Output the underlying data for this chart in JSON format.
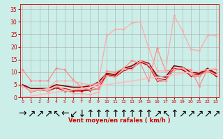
{
  "xlabel": "Vent moyen/en rafales ( km/h )",
  "xlim": [
    -0.3,
    23.3
  ],
  "ylim": [
    0,
    37
  ],
  "yticks": [
    0,
    5,
    10,
    15,
    20,
    25,
    30,
    35
  ],
  "xticks": [
    0,
    1,
    2,
    3,
    4,
    5,
    6,
    7,
    8,
    9,
    10,
    11,
    12,
    13,
    14,
    15,
    16,
    17,
    18,
    19,
    20,
    21,
    22,
    23
  ],
  "bg_color": "#cceee8",
  "grid_color": "#aaaaaa",
  "lines": [
    {
      "x": [
        0,
        1,
        2,
        3,
        4,
        5,
        6,
        7,
        8,
        9,
        10,
        11,
        12,
        13,
        14,
        15,
        16,
        17,
        18,
        19,
        20,
        21,
        22,
        23
      ],
      "y": [
        4.8,
        2.2,
        3.0,
        2.5,
        3.8,
        2.5,
        2.5,
        2.5,
        2.8,
        3.5,
        9.0,
        8.5,
        11.5,
        11.5,
        14.0,
        12.5,
        6.5,
        6.5,
        11.0,
        11.0,
        8.5,
        8.5,
        10.5,
        8.5
      ],
      "color": "#cc0000",
      "lw": 0.9,
      "marker": "D",
      "ms": 1.8
    },
    {
      "x": [
        0,
        1,
        2,
        3,
        4,
        5,
        6,
        7,
        8,
        9,
        10,
        11,
        12,
        13,
        14,
        15,
        16,
        17,
        18,
        19,
        20,
        21,
        22,
        23
      ],
      "y": [
        4.8,
        2.2,
        3.0,
        2.5,
        3.8,
        3.5,
        2.8,
        2.8,
        3.2,
        5.0,
        8.5,
        8.0,
        10.5,
        11.5,
        14.0,
        13.0,
        7.5,
        7.0,
        11.5,
        11.0,
        9.0,
        9.0,
        11.0,
        9.0
      ],
      "color": "#cc0000",
      "lw": 0.8,
      "marker": null,
      "ms": 0
    },
    {
      "x": [
        0,
        1,
        2,
        3,
        4,
        5,
        6,
        7,
        8,
        9,
        10,
        11,
        12,
        13,
        14,
        15,
        16,
        17,
        18,
        19,
        20,
        21,
        22,
        23
      ],
      "y": [
        5.0,
        3.5,
        3.5,
        3.5,
        5.0,
        4.5,
        4.0,
        4.0,
        4.5,
        6.0,
        9.5,
        9.0,
        11.5,
        12.5,
        14.5,
        13.5,
        8.5,
        8.0,
        12.5,
        12.0,
        10.0,
        9.5,
        11.5,
        9.5
      ],
      "color": "#880000",
      "lw": 1.2,
      "marker": null,
      "ms": 0
    },
    {
      "x": [
        0,
        1,
        2,
        3,
        4,
        5,
        6,
        7,
        8,
        9,
        10,
        11,
        12,
        13,
        14,
        15,
        16,
        17,
        18,
        19,
        20,
        21,
        22,
        23
      ],
      "y": [
        11.0,
        6.5,
        6.5,
        6.5,
        11.5,
        11.0,
        7.0,
        4.0,
        3.0,
        3.5,
        10.5,
        10.0,
        11.5,
        14.5,
        13.5,
        6.5,
        19.5,
        10.5,
        11.0,
        11.5,
        11.0,
        4.5,
        11.0,
        11.0
      ],
      "color": "#ff8888",
      "lw": 0.9,
      "marker": "D",
      "ms": 1.8
    },
    {
      "x": [
        0,
        1,
        2,
        3,
        4,
        5,
        6,
        7,
        8,
        9,
        10,
        11,
        12,
        13,
        14,
        15,
        16,
        17,
        18,
        19,
        20,
        21,
        22,
        23
      ],
      "y": [
        4.5,
        2.2,
        3.0,
        2.5,
        4.5,
        3.0,
        1.5,
        1.5,
        1.0,
        2.0,
        8.5,
        8.0,
        11.5,
        11.0,
        14.5,
        13.0,
        7.0,
        6.5,
        11.0,
        11.5,
        9.0,
        8.5,
        10.5,
        9.0
      ],
      "color": "#ffaaaa",
      "lw": 0.9,
      "marker": "D",
      "ms": 1.8
    },
    {
      "x": [
        0,
        1,
        2,
        3,
        4,
        5,
        6,
        7,
        8,
        9,
        10,
        11,
        12,
        13,
        14,
        15,
        16,
        17,
        18,
        19,
        20,
        21,
        22,
        23
      ],
      "y": [
        4.5,
        2.5,
        3.0,
        3.5,
        6.5,
        6.5,
        6.5,
        5.5,
        5.0,
        5.5,
        24.5,
        27.0,
        27.0,
        29.5,
        30.0,
        19.5,
        10.5,
        10.5,
        32.5,
        26.5,
        19.0,
        18.5,
        24.5,
        24.5
      ],
      "color": "#ffaaaa",
      "lw": 0.9,
      "marker": "D",
      "ms": 1.8
    },
    {
      "x": [
        0,
        1,
        2,
        3,
        4,
        5,
        6,
        7,
        8,
        9,
        10,
        11,
        12,
        13,
        14,
        15,
        16,
        17,
        18,
        19,
        20,
        21,
        22,
        23
      ],
      "y": [
        0.0,
        0.5,
        1.0,
        1.5,
        2.0,
        2.5,
        3.0,
        3.5,
        4.0,
        4.5,
        5.0,
        5.5,
        6.0,
        6.5,
        7.0,
        7.5,
        8.0,
        8.5,
        9.0,
        9.5,
        10.0,
        10.5,
        11.0,
        11.5
      ],
      "color": "#ffbbbb",
      "lw": 1.2,
      "marker": null,
      "ms": 0
    }
  ],
  "arrow_labels": [
    "→",
    "↗",
    "↗",
    "↗",
    "↖",
    "←",
    "↙",
    "↓",
    "↑",
    "↑",
    "↑",
    "↑",
    "↑",
    "↑",
    "↑",
    "↑",
    "↗",
    "↖",
    "↑",
    "↗",
    "↗",
    "↗",
    "↗",
    "↗"
  ],
  "arrow_color": "#cc0000",
  "xlabel_color": "#cc0000",
  "tick_color": "#cc0000"
}
